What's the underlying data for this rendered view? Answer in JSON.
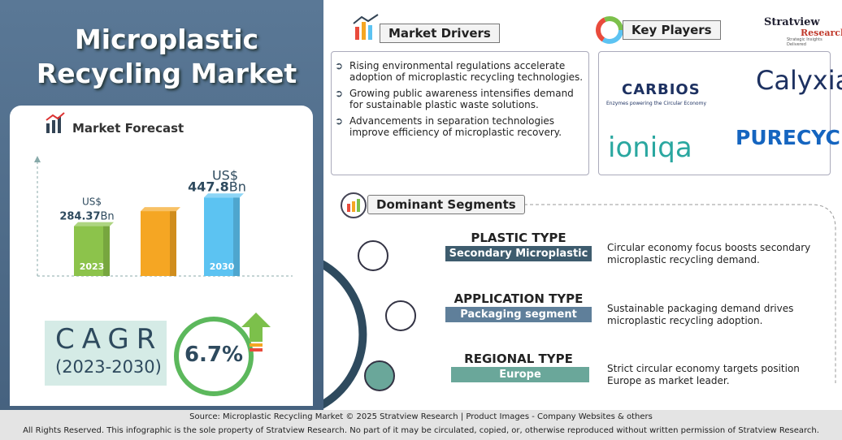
{
  "title": "Microplastic Recycling Market",
  "chart_data": {
    "type": "bar",
    "title": "Market Forecast",
    "categories": [
      "2023",
      null,
      "2030"
    ],
    "values": [
      284.37,
      370,
      447.8
    ],
    "currency": "US$",
    "unit": "Bn",
    "colors": [
      "#8cc34b",
      "#f5a623",
      "#5cc3f2"
    ],
    "ylim": [
      0,
      500
    ]
  },
  "cagr": {
    "label": "CAGR",
    "period": "(2023-2030)",
    "value": "6.7%"
  },
  "drivers": {
    "heading": "Market Drivers",
    "items": [
      "Rising environmental regulations accelerate adoption of microplastic recycling technologies.",
      "Growing public awareness intensifies demand for sustainable plastic waste solutions.",
      "Advancements in separation technologies improve efficiency of microplastic recovery."
    ]
  },
  "players": {
    "heading": "Key Players",
    "logos": [
      "CARBIOS",
      "Enzymes powering the Circular Economy",
      "Calyxia",
      "ioniqa",
      "PURECYCLE"
    ]
  },
  "brand": {
    "name": "Stratview",
    "sub": "Research",
    "tagline": "Strategic Insights Delivered"
  },
  "segments": {
    "heading": "Dominant Segments",
    "items": [
      {
        "type": "PLASTIC TYPE",
        "value": "Secondary Microplastic",
        "desc": "Circular economy focus boosts secondary microplastic recycling demand."
      },
      {
        "type": "APPLICATION TYPE",
        "value": "Packaging segment",
        "desc": "Sustainable packaging demand drives microplastic recycling adoption."
      },
      {
        "type": "REGIONAL TYPE",
        "value": "Europe",
        "desc": "Strict circular economy targets position Europe as market leader."
      }
    ]
  },
  "footer": {
    "source": "Source:  Microplastic Recycling Market © 2025 Stratview Research | Product Images  - Company Websites & others",
    "rights": "All Rights Reserved. This infographic is the sole property of Stratview Research. No part of it may be circulated, copied, or, otherwise reproduced without written permission of Stratview Research."
  }
}
